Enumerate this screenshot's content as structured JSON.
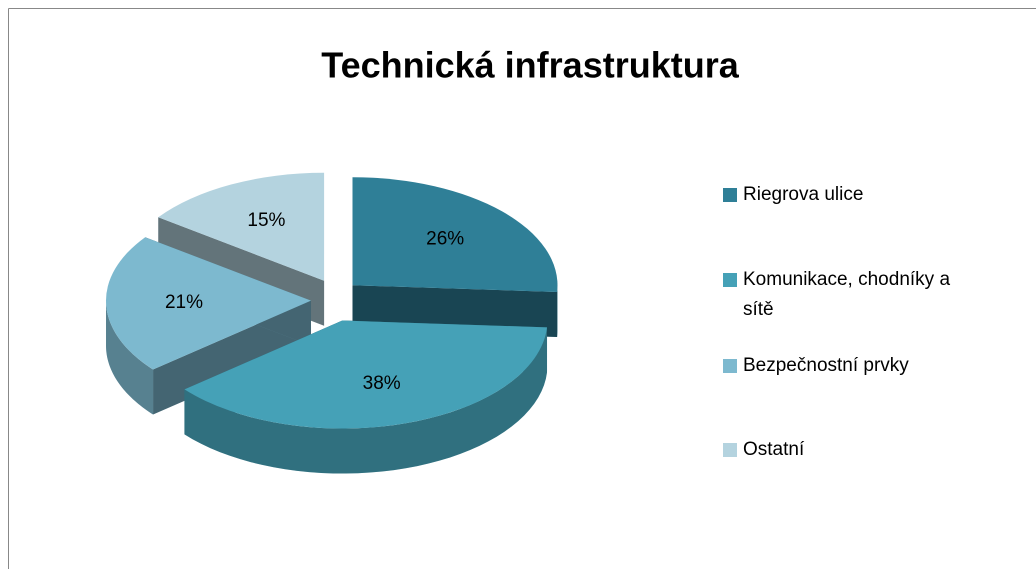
{
  "chart_data": {
    "type": "pie",
    "title": "Technická infrastruktura",
    "categories": [
      "Riegrova ulice",
      "Komunikace, chodníky a sítě",
      "Bezpečnostní prvky",
      "Ostatní"
    ],
    "values": [
      26,
      38,
      21,
      15
    ],
    "value_labels": [
      "26%",
      "38%",
      "21%",
      "15%"
    ],
    "colors": [
      "#2f7f97",
      "#45a1b7",
      "#7db9cf",
      "#b4d3df"
    ],
    "legend": "right"
  }
}
